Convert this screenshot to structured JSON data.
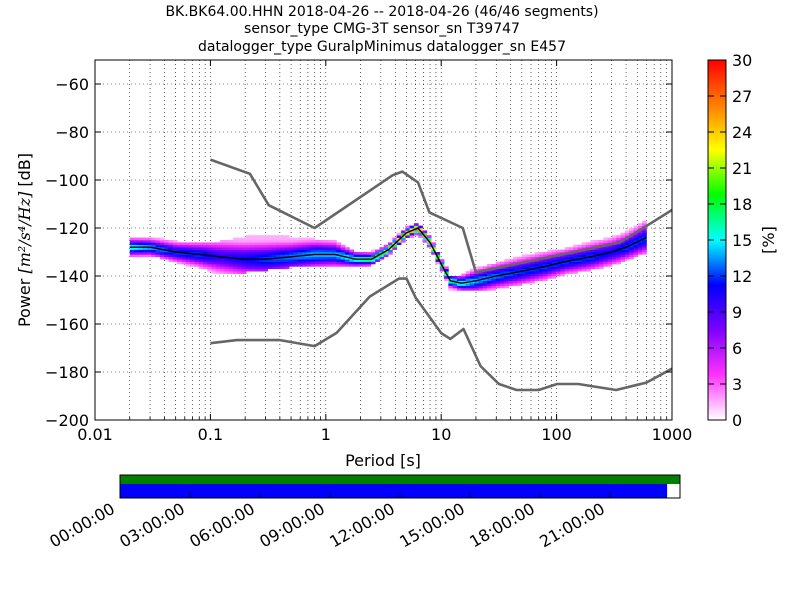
{
  "title_lines": [
    "BK.BK64.00.HHN   2018-04-26 -- 2018-04-26  (46/46 segments)",
    "sensor_type CMG-3T sensor_sn T39747",
    "datalogger_type GuralpMinimus datalogger_sn E457"
  ],
  "xlabel": "Period [s]",
  "ylabel_prefix": "Power ",
  "ylabel_math": "[m²/s⁴/Hz]",
  "ylabel_suffix": " [dB]",
  "colorbar_label": "[%]",
  "colors": {
    "model_lines": "#666666",
    "mode_line": "#000000",
    "coverage_top": "#007f00",
    "coverage_bottom": "#0000ff",
    "colormap": [
      "#ffffff",
      "#ff33ff",
      "#7f00ff",
      "#0000ff",
      "#00ffff",
      "#00ff00",
      "#ffff00",
      "#ff7f00",
      "#ff0000"
    ]
  },
  "chart_data": {
    "type": "heatmap",
    "xscale": "log",
    "xlim": [
      0.01,
      1000
    ],
    "ylim": [
      -200,
      -50
    ],
    "x_ticks": [
      0.01,
      0.1,
      1,
      10,
      100,
      1000
    ],
    "x_tick_labels": [
      "0.01",
      "0.1",
      "1",
      "10",
      "100",
      "1000"
    ],
    "y_ticks": [
      -200,
      -180,
      -160,
      -140,
      -120,
      -100,
      -80,
      -60
    ],
    "y_tick_labels": [
      "−200",
      "−180",
      "−160",
      "−140",
      "−120",
      "−100",
      "−80",
      "−60"
    ],
    "colorbar": {
      "range": [
        0,
        30
      ],
      "ticks": [
        0,
        3,
        6,
        9,
        12,
        15,
        18,
        21,
        24,
        27,
        30
      ],
      "label": "[%]"
    },
    "grid": true,
    "series": [
      {
        "role": "high-noise-model",
        "x": [
          0.1,
          0.22,
          0.32,
          0.8,
          3.8,
          4.6,
          6.3,
          7.9,
          15.4,
          20,
          354.8,
          1000
        ],
        "y": [
          -91.5,
          -97.4,
          -110.5,
          -120,
          -98,
          -96.5,
          -101,
          -113.5,
          -120,
          -138.5,
          -126,
          -112.5
        ]
      },
      {
        "role": "low-noise-model",
        "x": [
          0.1,
          0.17,
          0.4,
          0.8,
          1.24,
          2.4,
          4.3,
          5,
          6,
          10,
          12,
          15.6,
          21.9,
          31.6,
          45,
          70,
          101,
          154,
          328,
          600,
          1000
        ],
        "y": [
          -168,
          -166.7,
          -166.7,
          -169.2,
          -163.7,
          -148.6,
          -141.1,
          -141.1,
          -149,
          -163.8,
          -166.2,
          -162.1,
          -177.5,
          -185,
          -187.5,
          -187.5,
          -185,
          -185,
          -187.5,
          -184.4,
          -178.6
        ]
      },
      {
        "role": "mode",
        "x": [
          0.02,
          0.03,
          0.05,
          0.08,
          0.12,
          0.2,
          0.3,
          0.5,
          0.8,
          1.2,
          1.8,
          2.5,
          3.5,
          5,
          6.3,
          8,
          10,
          12,
          15,
          20,
          30,
          50,
          80,
          120,
          200,
          300,
          400,
          600
        ],
        "y": [
          -128,
          -128,
          -130,
          -131,
          -132,
          -133,
          -133,
          -132,
          -131,
          -131,
          -133,
          -133,
          -129,
          -122,
          -120,
          -126,
          -135,
          -142,
          -143,
          -142,
          -140,
          -138,
          -136,
          -134,
          -132,
          -130,
          -128,
          -124
        ]
      }
    ],
    "heatmap_bands": {
      "x": [
        0.02,
        0.03,
        0.05,
        0.08,
        0.12,
        0.2,
        0.3,
        0.5,
        0.8,
        1.2,
        1.8,
        2.5,
        3.5,
        5,
        6.3,
        8,
        10,
        12,
        15,
        20,
        30,
        50,
        80,
        120,
        200,
        300,
        400,
        600
      ],
      "y_min": [
        -132,
        -131,
        -134,
        -136,
        -139,
        -138,
        -137,
        -136,
        -136,
        -136,
        -136,
        -135,
        -131,
        -124,
        -122,
        -128,
        -137,
        -145,
        -146,
        -146,
        -145,
        -143,
        -141,
        -139,
        -137,
        -135,
        -133,
        -130
      ],
      "y_max": [
        -125,
        -124,
        -126,
        -126,
        -126,
        -124,
        -123,
        -124,
        -125,
        -126,
        -130,
        -130,
        -127,
        -120,
        -118,
        -124,
        -133,
        -140,
        -140,
        -137,
        -135,
        -132,
        -130,
        -129,
        -126,
        -124,
        -122,
        -117
      ],
      "peak_percent": [
        16,
        14,
        12,
        12,
        10,
        11,
        12,
        13,
        14,
        14,
        16,
        18,
        22,
        25,
        28,
        24,
        20,
        17,
        16,
        14,
        13,
        12,
        12,
        12,
        12,
        11,
        12,
        12
      ]
    },
    "time_axis": {
      "tick_labels": [
        "00:00:00",
        "03:00:00",
        "06:00:00",
        "09:00:00",
        "12:00:00",
        "15:00:00",
        "18:00:00",
        "21:00:00"
      ],
      "coverage_top": [
        0,
        1
      ],
      "coverage_bottom": [
        0,
        0.977
      ]
    }
  }
}
